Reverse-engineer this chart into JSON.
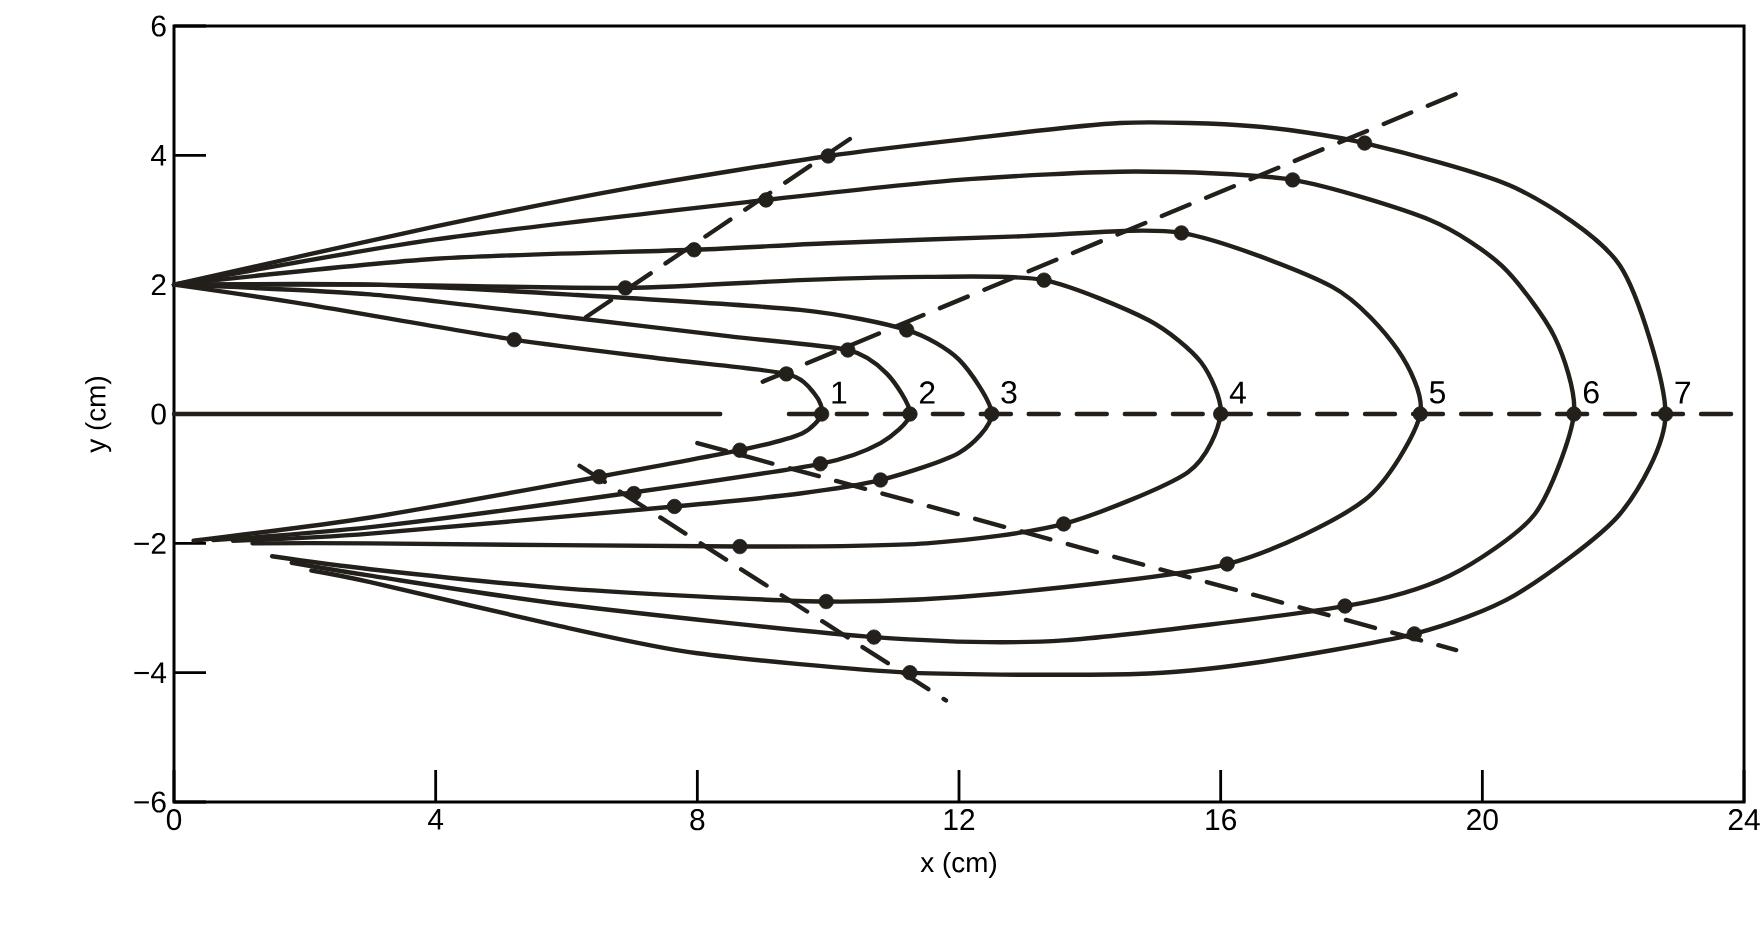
{
  "chart_data": {
    "type": "line",
    "xlabel": "x (cm)",
    "ylabel": "y (cm)",
    "xlim": [
      0,
      24
    ],
    "ylim": [
      -6,
      6
    ],
    "xticks": [
      0,
      4,
      8,
      12,
      16,
      20,
      24
    ],
    "yticks": [
      {
        "value": -6,
        "label": "−6"
      },
      {
        "value": -4,
        "label": "−4"
      },
      {
        "value": -2,
        "label": "−2"
      },
      0,
      2,
      4,
      6
    ],
    "grid": false,
    "series": [
      {
        "name": "1",
        "color": "#231f1a",
        "line_style": "solid",
        "x": [
          0,
          2,
          5.2,
          7.5,
          9.36,
          9.8,
          9.9,
          9.6,
          8.65,
          6.5,
          3,
          0.3
        ],
        "values": [
          2,
          1.7,
          1.15,
          0.85,
          0.62,
          0.3,
          0,
          -0.3,
          -0.56,
          -0.97,
          -1.6,
          -1.96
        ]
      },
      {
        "name": "2",
        "color": "#231f1a",
        "line_style": "solid",
        "x": [
          0,
          3,
          6,
          8.5,
          10.3,
          10.9,
          11.25,
          10.8,
          9.88,
          6.9,
          3,
          0.6
        ],
        "values": [
          2,
          1.85,
          1.5,
          1.2,
          0.99,
          0.62,
          0,
          -0.45,
          -0.77,
          -1.23,
          -1.75,
          -1.95
        ]
      },
      {
        "name": "3",
        "color": "#231f1a",
        "line_style": "solid",
        "x": [
          0,
          3,
          6,
          9.57,
          11.2,
          12.0,
          12.5,
          12.0,
          10.8,
          9.57,
          7.65,
          3,
          0.9
        ],
        "values": [
          2,
          2.0,
          1.85,
          1.61,
          1.3,
          0.84,
          0,
          -0.6,
          -1.02,
          -1.23,
          -1.43,
          -1.85,
          -1.96
        ]
      },
      {
        "name": "4",
        "color": "#231f1a",
        "line_style": "solid",
        "x": [
          0,
          3,
          6.9,
          9.57,
          11.5,
          13.3,
          14.9,
          15.7,
          16.0,
          15.5,
          13.6,
          11.5,
          8.65,
          3,
          1.2
        ],
        "values": [
          2,
          2.0,
          1.95,
          2.07,
          2.12,
          2.07,
          1.45,
          0.8,
          0,
          -0.9,
          -1.7,
          -2.0,
          -2.05,
          -2.0,
          -2
        ]
      },
      {
        "name": "5",
        "color": "#231f1a",
        "line_style": "solid",
        "x": [
          0,
          4,
          7.95,
          10,
          13,
          15.4,
          17.7,
          18.7,
          19.05,
          18.2,
          16.1,
          12.6,
          9.97,
          6,
          3,
          1.5
        ],
        "values": [
          2,
          2.4,
          2.54,
          2.64,
          2.75,
          2.8,
          1.97,
          1.0,
          0,
          -1.33,
          -2.32,
          -2.78,
          -2.9,
          -2.7,
          -2.4,
          -2.2
        ]
      },
      {
        "name": "6",
        "color": "#231f1a",
        "line_style": "solid",
        "x": [
          0,
          4,
          9.05,
          12,
          14.7,
          17.1,
          19.2,
          20.3,
          21.1,
          21.4,
          20.8,
          19.5,
          17.9,
          13.6,
          10.7,
          6,
          3,
          1.8
        ],
        "values": [
          2,
          2.7,
          3.31,
          3.62,
          3.75,
          3.62,
          3.0,
          2.29,
          1.2,
          0,
          -1.55,
          -2.5,
          -2.97,
          -3.5,
          -3.45,
          -2.95,
          -2.5,
          -2.3
        ]
      },
      {
        "name": "7",
        "color": "#231f1a",
        "line_style": "solid",
        "x": [
          0,
          4,
          7,
          10,
          12,
          14.46,
          16.5,
          18.2,
          20.5,
          22.1,
          22.8,
          22.1,
          20.5,
          18.96,
          16.5,
          14.7,
          11.25,
          8,
          5.9,
          3,
          2.1
        ],
        "values": [
          2,
          2.9,
          3.5,
          3.99,
          4.24,
          4.5,
          4.45,
          4.19,
          3.5,
          2.3,
          0,
          -1.55,
          -2.8,
          -3.4,
          -3.85,
          -4.02,
          -4.0,
          -3.7,
          -3.28,
          -2.6,
          -2.42
        ]
      },
      {
        "color": "#231f1a",
        "line_style": "solid",
        "x": [
          0,
          8.35
        ],
        "values": [
          0,
          0
        ]
      },
      {
        "color": "#231f1a",
        "line_style": "dashed",
        "x": [
          9.4,
          24
        ],
        "values": [
          0,
          0
        ]
      },
      {
        "color": "#231f1a",
        "line_style": "dashed",
        "x": [
          6.3,
          10.4
        ],
        "values": [
          1.5,
          4.3
        ]
      },
      {
        "color": "#231f1a",
        "line_style": "dashed",
        "x": [
          9.0,
          19.6
        ],
        "values": [
          0.5,
          4.95
        ]
      },
      {
        "color": "#231f1a",
        "line_style": "dashed",
        "x": [
          6.2,
          11.8
        ],
        "values": [
          -0.8,
          -4.43
        ]
      },
      {
        "color": "#231f1a",
        "line_style": "dashed",
        "x": [
          8.0,
          19.6
        ],
        "values": [
          -0.45,
          -3.65
        ]
      },
      {
        "type": "scatter",
        "marker": "circle",
        "color": "#231f1a",
        "x": [
          5.2,
          6.9,
          7.95,
          9.05,
          10.0,
          9.36,
          10.3,
          11.2,
          13.3,
          15.4,
          17.1,
          18.2,
          9.9,
          11.25,
          12.5,
          16.0,
          19.05,
          21.4,
          22.8,
          6.5,
          7.03,
          7.65,
          8.65,
          9.97,
          10.7,
          11.25,
          8.65,
          9.88,
          10.8,
          13.6,
          16.1,
          17.9,
          18.96
        ],
        "values": [
          1.15,
          1.95,
          2.54,
          3.31,
          3.99,
          0.62,
          0.99,
          1.3,
          2.07,
          2.8,
          3.62,
          4.19,
          0,
          0,
          0,
          0,
          0,
          0,
          0,
          -0.97,
          -1.23,
          -1.43,
          -2.05,
          -2.9,
          -3.45,
          -4.0,
          -0.56,
          -0.77,
          -1.02,
          -1.7,
          -2.32,
          -2.97,
          -3.4
        ]
      }
    ]
  }
}
